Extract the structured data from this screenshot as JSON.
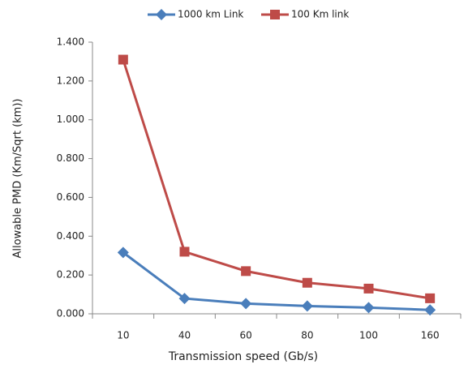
{
  "chart_data": {
    "type": "line",
    "x_label": "Transmission speed  (Gb/s)",
    "y_label": "Allowable PMD (Km/Sqrt (km))",
    "categories": [
      "10",
      "40",
      "60",
      "80",
      "100",
      "160"
    ],
    "series": [
      {
        "name": "1000 km Link",
        "color": "#4a7ebb",
        "marker": "diamond",
        "values": [
          0.316,
          0.079,
          0.053,
          0.04,
          0.032,
          0.02
        ]
      },
      {
        "name": "100 Km link",
        "color": "#be4b48",
        "marker": "square",
        "values": [
          1.31,
          0.32,
          0.22,
          0.16,
          0.13,
          0.08
        ]
      }
    ],
    "ylim": [
      0,
      1.4
    ],
    "yticks": [
      {
        "value": 0,
        "label": "0.000"
      },
      {
        "value": 0.2,
        "label": "0.200"
      },
      {
        "value": 0.4,
        "label": "0.400"
      },
      {
        "value": 0.6,
        "label": "0.600"
      },
      {
        "value": 0.8,
        "label": "0.800"
      },
      {
        "value": 1.0,
        "label": "1.000"
      },
      {
        "value": 1.2,
        "label": "1.200"
      },
      {
        "value": 1.4,
        "label": "1.400"
      }
    ],
    "grid": false,
    "legend": "top"
  }
}
